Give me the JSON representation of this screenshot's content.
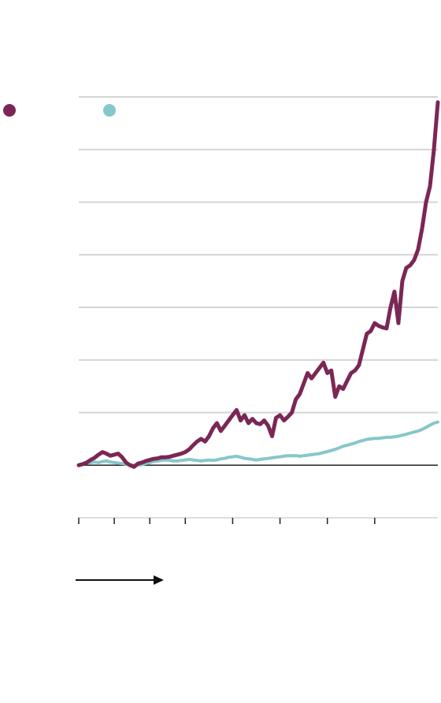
{
  "chart_data": {
    "type": "line",
    "title": "",
    "xlabel": "",
    "ylabel": "",
    "legend_position": "top-left",
    "grid": true,
    "ylim": [
      -1,
      7
    ],
    "x_ticks": [
      0,
      9,
      18,
      27,
      39,
      51,
      63,
      75
    ],
    "series": [
      {
        "color": "#7b2755",
        "values": [
          0,
          0.02,
          0.05,
          0.1,
          0.14,
          0.2,
          0.25,
          0.22,
          0.18,
          0.2,
          0.22,
          0.15,
          0.05,
          0.0,
          -0.03,
          0.03,
          0.05,
          0.08,
          0.1,
          0.12,
          0.13,
          0.15,
          0.15,
          0.16,
          0.18,
          0.2,
          0.22,
          0.25,
          0.3,
          0.38,
          0.45,
          0.5,
          0.45,
          0.55,
          0.7,
          0.8,
          0.65,
          0.75,
          0.85,
          0.95,
          1.05,
          0.85,
          0.95,
          0.8,
          0.88,
          0.8,
          0.78,
          0.85,
          0.75,
          0.55,
          0.9,
          0.95,
          0.85,
          0.92,
          1.0,
          1.25,
          1.35,
          1.55,
          1.75,
          1.65,
          1.75,
          1.85,
          1.95,
          1.75,
          1.8,
          1.3,
          1.5,
          1.45,
          1.6,
          1.75,
          1.8,
          1.9,
          2.2,
          2.5,
          2.55,
          2.7,
          2.65,
          2.62,
          2.6,
          3.0,
          3.3,
          2.7,
          3.5,
          3.75,
          3.8,
          3.9,
          4.1,
          4.5,
          5.0,
          5.3,
          6.0,
          6.9
        ]
      },
      {
        "color": "#86c7cb",
        "values": [
          0,
          0.02,
          0.04,
          0.05,
          0.06,
          0.05,
          0.07,
          0.08,
          0.06,
          0.05,
          0.04,
          0.03,
          0.02,
          0.01,
          0.0,
          0.0,
          0.01,
          0.03,
          0.05,
          0.07,
          0.08,
          0.09,
          0.1,
          0.09,
          0.08,
          0.08,
          0.09,
          0.1,
          0.11,
          0.1,
          0.09,
          0.08,
          0.09,
          0.1,
          0.09,
          0.1,
          0.12,
          0.13,
          0.15,
          0.16,
          0.17,
          0.15,
          0.13,
          0.12,
          0.11,
          0.1,
          0.11,
          0.12,
          0.13,
          0.14,
          0.15,
          0.16,
          0.17,
          0.18,
          0.18,
          0.18,
          0.17,
          0.18,
          0.19,
          0.2,
          0.21,
          0.22,
          0.24,
          0.26,
          0.28,
          0.3,
          0.33,
          0.36,
          0.38,
          0.4,
          0.42,
          0.45,
          0.47,
          0.49,
          0.5,
          0.51,
          0.51,
          0.52,
          0.53,
          0.53,
          0.54,
          0.55,
          0.57,
          0.59,
          0.61,
          0.63,
          0.65,
          0.68,
          0.72,
          0.76,
          0.8,
          0.82
        ]
      }
    ]
  }
}
